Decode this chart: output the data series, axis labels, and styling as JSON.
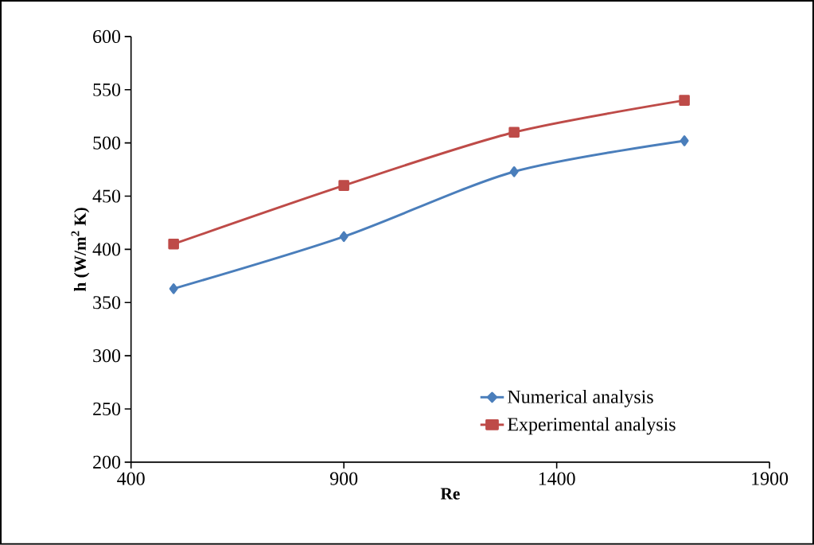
{
  "chart_data": {
    "type": "line",
    "xlabel": "Re",
    "ylabel": "**h  (W/m$^{2}$ K)**",
    "x": [
      500,
      900,
      1300,
      1700
    ],
    "series": [
      {
        "name": "Numerical analysis",
        "color": "#4a7ebb",
        "marker": "diamond",
        "values": [
          363,
          412,
          473,
          502
        ]
      },
      {
        "name": "Experimental analysis",
        "color": "#be4b48",
        "marker": "square",
        "values": [
          405,
          460,
          510,
          540
        ]
      }
    ],
    "xlim": [
      400,
      1900
    ],
    "xticks": [
      400,
      900,
      1400,
      1900
    ],
    "ylim": [
      200,
      600
    ],
    "yticks": [
      200,
      250,
      300,
      350,
      400,
      450,
      500,
      550,
      600
    ],
    "legend": "bottom right",
    "line_style": "solid"
  }
}
